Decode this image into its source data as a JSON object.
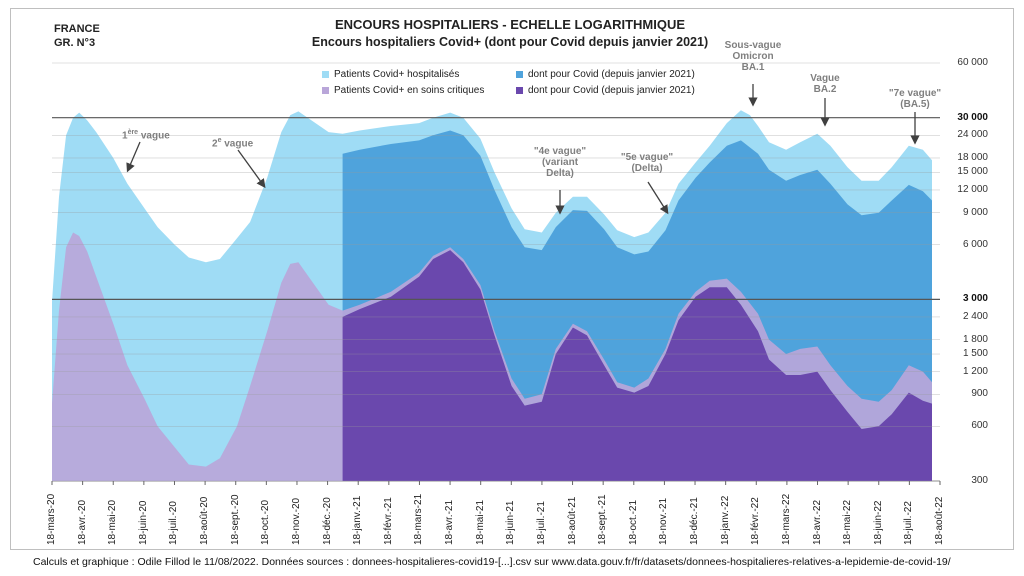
{
  "header": {
    "country": "FRANCE",
    "graph_no": "GR. N°3",
    "title": "ENCOURS HOSPITALIERS - ECHELLE LOGARITHMIQUE",
    "subtitle": "Encours hospitaliers Covid+ (dont pour Covid depuis janvier 2021)"
  },
  "footer": "Calculs et graphique : Odile Fillod le 11/08/2022. Données sources : donnees-hospitalieres-covid19-[...].csv sur www.data.gouv.fr/fr/datasets/donnees-hospitalieres-relatives-a-lepidemie-de-covid-19/",
  "colors": {
    "hosp_all": "#9fdcf5",
    "hosp_for_covid": "#4fa3dc",
    "crit_all": "#b9a6d9",
    "crit_for_covid": "#6a48ad"
  },
  "annotations": {
    "wave1": {
      "num": "1",
      "sup": "ère",
      "rest": " vague"
    },
    "wave2": {
      "num": "2",
      "sup": "e",
      "rest": " vague"
    },
    "wave4": [
      "\"4e vague\"",
      "(variant",
      "Delta)"
    ],
    "wave5": [
      "\"5e vague\"",
      "(Delta)"
    ],
    "omicron": [
      "Sous-vague",
      "Omicron",
      "BA.1"
    ],
    "ba2": [
      "Vague",
      "BA.2"
    ],
    "ba5": [
      "\"7e vague\"",
      "(BA.5)"
    ]
  },
  "chart_data": {
    "type": "area",
    "title": "ENCOURS HOSPITALIERS - ECHELLE LOGARITHMIQUE",
    "subtitle": "Encours hospitaliers Covid+ (dont pour Covid depuis janvier 2021)",
    "y_scale": "log",
    "ylim": [
      300,
      60000
    ],
    "y_ticks": [
      300,
      600,
      900,
      1200,
      1500,
      1800,
      2400,
      3000,
      6000,
      9000,
      12000,
      15000,
      18000,
      24000,
      30000,
      60000
    ],
    "y_tick_labels": [
      "300",
      "600",
      "900",
      "1 200",
      "1 500",
      "1 800",
      "2 400",
      "3 000",
      "6 000",
      "9 000",
      "12 000",
      "15 000",
      "18 000",
      "24 000",
      "30 000",
      "60 000"
    ],
    "reference_lines": [
      3000,
      30000
    ],
    "x_ticks": [
      "18-mars-20",
      "18-avr.-20",
      "18-mai-20",
      "18-juin-20",
      "18-juil.-20",
      "18-août-20",
      "18-sept.-20",
      "18-oct.-20",
      "18-nov.-20",
      "18-déc.-20",
      "18-janv.-21",
      "18-févr.-21",
      "18-mars-21",
      "18-avr.-21",
      "18-mai-21",
      "18-juin-21",
      "18-juil.-21",
      "18-août-21",
      "18-sept.-21",
      "18-oct.-21",
      "18-nov.-21",
      "18-déc.-21",
      "18-janv.-22",
      "18-févr.-22",
      "18-mars-22",
      "18-avr.-22",
      "18-mai-22",
      "18-juin-22",
      "18-juil.-22",
      "18-août-22"
    ],
    "legend_position": "top",
    "series": [
      {
        "name": "Patients Covid+ hospitalisés",
        "color": "#9fdcf5",
        "points": [
          [
            "2020-03-18",
            2900
          ],
          [
            "2020-03-25",
            11000
          ],
          [
            "2020-04-01",
            24000
          ],
          [
            "2020-04-08",
            30000
          ],
          [
            "2020-04-14",
            32000
          ],
          [
            "2020-04-22",
            29000
          ],
          [
            "2020-05-01",
            25000
          ],
          [
            "2020-05-18",
            18000
          ],
          [
            "2020-06-01",
            13000
          ],
          [
            "2020-06-18",
            9500
          ],
          [
            "2020-07-01",
            7500
          ],
          [
            "2020-07-18",
            6000
          ],
          [
            "2020-08-01",
            5100
          ],
          [
            "2020-08-18",
            4800
          ],
          [
            "2020-09-01",
            5000
          ],
          [
            "2020-09-18",
            6500
          ],
          [
            "2020-10-01",
            8000
          ],
          [
            "2020-10-18",
            14000
          ],
          [
            "2020-11-01",
            25000
          ],
          [
            "2020-11-10",
            31000
          ],
          [
            "2020-11-18",
            32500
          ],
          [
            "2020-12-01",
            29000
          ],
          [
            "2020-12-18",
            25000
          ],
          [
            "2021-01-01",
            24500
          ],
          [
            "2021-01-18",
            25500
          ],
          [
            "2021-02-18",
            27000
          ],
          [
            "2021-03-18",
            28000
          ],
          [
            "2021-04-01",
            30000
          ],
          [
            "2021-04-18",
            32000
          ],
          [
            "2021-05-01",
            30000
          ],
          [
            "2021-05-18",
            23000
          ],
          [
            "2021-06-01",
            15000
          ],
          [
            "2021-06-18",
            9500
          ],
          [
            "2021-07-01",
            7300
          ],
          [
            "2021-07-18",
            7000
          ],
          [
            "2021-08-01",
            9000
          ],
          [
            "2021-08-18",
            11000
          ],
          [
            "2021-09-01",
            11000
          ],
          [
            "2021-09-18",
            8800
          ],
          [
            "2021-10-01",
            7200
          ],
          [
            "2021-10-18",
            6600
          ],
          [
            "2021-11-01",
            7000
          ],
          [
            "2021-11-18",
            9000
          ],
          [
            "2021-12-01",
            13000
          ],
          [
            "2021-12-18",
            17000
          ],
          [
            "2022-01-01",
            21000
          ],
          [
            "2022-01-18",
            28000
          ],
          [
            "2022-02-01",
            33000
          ],
          [
            "2022-02-10",
            31000
          ],
          [
            "2022-02-18",
            27000
          ],
          [
            "2022-03-01",
            22000
          ],
          [
            "2022-03-18",
            20000
          ],
          [
            "2022-04-01",
            22000
          ],
          [
            "2022-04-18",
            24500
          ],
          [
            "2022-05-01",
            21000
          ],
          [
            "2022-05-18",
            16000
          ],
          [
            "2022-06-01",
            13500
          ],
          [
            "2022-06-18",
            13500
          ],
          [
            "2022-07-01",
            16000
          ],
          [
            "2022-07-18",
            21000
          ],
          [
            "2022-08-01",
            20000
          ],
          [
            "2022-08-10",
            17500
          ]
        ]
      },
      {
        "name": "dont pour Covid (depuis janvier 2021)",
        "color": "#4fa3dc",
        "points": [
          [
            "2021-01-01",
            19000
          ],
          [
            "2021-01-18",
            20000
          ],
          [
            "2021-02-18",
            21500
          ],
          [
            "2021-03-18",
            22500
          ],
          [
            "2021-04-01",
            24000
          ],
          [
            "2021-04-18",
            25500
          ],
          [
            "2021-05-01",
            24000
          ],
          [
            "2021-05-18",
            18500
          ],
          [
            "2021-06-01",
            12000
          ],
          [
            "2021-06-18",
            7500
          ],
          [
            "2021-07-01",
            5800
          ],
          [
            "2021-07-18",
            5600
          ],
          [
            "2021-08-01",
            7500
          ],
          [
            "2021-08-18",
            9300
          ],
          [
            "2021-09-01",
            9200
          ],
          [
            "2021-09-18",
            7300
          ],
          [
            "2021-10-01",
            5800
          ],
          [
            "2021-10-18",
            5300
          ],
          [
            "2021-11-01",
            5500
          ],
          [
            "2021-11-18",
            7200
          ],
          [
            "2021-12-01",
            10500
          ],
          [
            "2021-12-18",
            14000
          ],
          [
            "2022-01-01",
            17000
          ],
          [
            "2022-01-18",
            21000
          ],
          [
            "2022-02-01",
            22500
          ],
          [
            "2022-02-18",
            19000
          ],
          [
            "2022-03-01",
            15500
          ],
          [
            "2022-03-18",
            13500
          ],
          [
            "2022-04-01",
            14500
          ],
          [
            "2022-04-18",
            15500
          ],
          [
            "2022-05-01",
            13000
          ],
          [
            "2022-05-18",
            10000
          ],
          [
            "2022-06-01",
            8700
          ],
          [
            "2022-06-18",
            9000
          ],
          [
            "2022-07-01",
            10500
          ],
          [
            "2022-07-18",
            12800
          ],
          [
            "2022-08-01",
            11800
          ],
          [
            "2022-08-10",
            10500
          ]
        ]
      },
      {
        "name": "Patients Covid+ en soins critiques",
        "color": "#b9a6d9",
        "points": [
          [
            "2020-03-18",
            800
          ],
          [
            "2020-03-25",
            2600
          ],
          [
            "2020-04-01",
            5800
          ],
          [
            "2020-04-08",
            7000
          ],
          [
            "2020-04-14",
            6700
          ],
          [
            "2020-04-22",
            5500
          ],
          [
            "2020-05-01",
            4000
          ],
          [
            "2020-05-18",
            2200
          ],
          [
            "2020-06-01",
            1300
          ],
          [
            "2020-06-18",
            850
          ],
          [
            "2020-07-01",
            600
          ],
          [
            "2020-07-18",
            460
          ],
          [
            "2020-08-01",
            370
          ],
          [
            "2020-08-18",
            360
          ],
          [
            "2020-09-01",
            400
          ],
          [
            "2020-09-18",
            600
          ],
          [
            "2020-10-01",
            1000
          ],
          [
            "2020-10-18",
            2000
          ],
          [
            "2020-11-01",
            3700
          ],
          [
            "2020-11-10",
            4700
          ],
          [
            "2020-11-18",
            4800
          ],
          [
            "2020-12-01",
            3800
          ],
          [
            "2020-12-18",
            2800
          ],
          [
            "2021-01-01",
            2600
          ],
          [
            "2021-01-18",
            2800
          ],
          [
            "2021-02-18",
            3300
          ],
          [
            "2021-03-18",
            4200
          ],
          [
            "2021-04-01",
            5200
          ],
          [
            "2021-04-18",
            5800
          ],
          [
            "2021-05-01",
            5000
          ],
          [
            "2021-05-18",
            3600
          ],
          [
            "2021-06-01",
            2000
          ],
          [
            "2021-06-18",
            1100
          ],
          [
            "2021-07-01",
            850
          ],
          [
            "2021-07-18",
            900
          ],
          [
            "2021-08-01",
            1600
          ],
          [
            "2021-08-18",
            2200
          ],
          [
            "2021-09-01",
            2000
          ],
          [
            "2021-09-18",
            1400
          ],
          [
            "2021-10-01",
            1050
          ],
          [
            "2021-10-18",
            980
          ],
          [
            "2021-11-01",
            1100
          ],
          [
            "2021-11-18",
            1600
          ],
          [
            "2021-12-01",
            2500
          ],
          [
            "2021-12-18",
            3300
          ],
          [
            "2022-01-01",
            3800
          ],
          [
            "2022-01-18",
            3900
          ],
          [
            "2022-02-01",
            3300
          ],
          [
            "2022-02-18",
            2500
          ],
          [
            "2022-03-01",
            1800
          ],
          [
            "2022-03-18",
            1500
          ],
          [
            "2022-04-01",
            1600
          ],
          [
            "2022-04-18",
            1650
          ],
          [
            "2022-05-01",
            1300
          ],
          [
            "2022-05-18",
            1000
          ],
          [
            "2022-06-01",
            850
          ],
          [
            "2022-06-18",
            820
          ],
          [
            "2022-07-01",
            950
          ],
          [
            "2022-07-18",
            1300
          ],
          [
            "2022-08-01",
            1200
          ],
          [
            "2022-08-10",
            1050
          ]
        ]
      },
      {
        "name": "dont pour Covid (depuis janvier 2021)",
        "color": "#6a48ad",
        "points": [
          [
            "2021-01-01",
            2400
          ],
          [
            "2021-01-18",
            2650
          ],
          [
            "2021-02-18",
            3100
          ],
          [
            "2021-03-18",
            4000
          ],
          [
            "2021-04-01",
            5000
          ],
          [
            "2021-04-18",
            5600
          ],
          [
            "2021-05-01",
            4800
          ],
          [
            "2021-05-18",
            3400
          ],
          [
            "2021-06-01",
            1900
          ],
          [
            "2021-06-18",
            1000
          ],
          [
            "2021-07-01",
            780
          ],
          [
            "2021-07-18",
            820
          ],
          [
            "2021-08-01",
            1500
          ],
          [
            "2021-08-18",
            2100
          ],
          [
            "2021-09-01",
            1900
          ],
          [
            "2021-09-18",
            1300
          ],
          [
            "2021-10-01",
            980
          ],
          [
            "2021-10-18",
            920
          ],
          [
            "2021-11-01",
            1000
          ],
          [
            "2021-11-18",
            1500
          ],
          [
            "2021-12-01",
            2300
          ],
          [
            "2021-12-18",
            3100
          ],
          [
            "2022-01-01",
            3500
          ],
          [
            "2022-01-18",
            3500
          ],
          [
            "2022-02-01",
            2800
          ],
          [
            "2022-02-18",
            2000
          ],
          [
            "2022-03-01",
            1400
          ],
          [
            "2022-03-18",
            1150
          ],
          [
            "2022-04-01",
            1150
          ],
          [
            "2022-04-18",
            1200
          ],
          [
            "2022-05-01",
            950
          ],
          [
            "2022-05-18",
            720
          ],
          [
            "2022-06-01",
            580
          ],
          [
            "2022-06-18",
            600
          ],
          [
            "2022-07-01",
            700
          ],
          [
            "2022-07-18",
            920
          ],
          [
            "2022-08-01",
            830
          ],
          [
            "2022-08-10",
            800
          ]
        ]
      }
    ]
  }
}
